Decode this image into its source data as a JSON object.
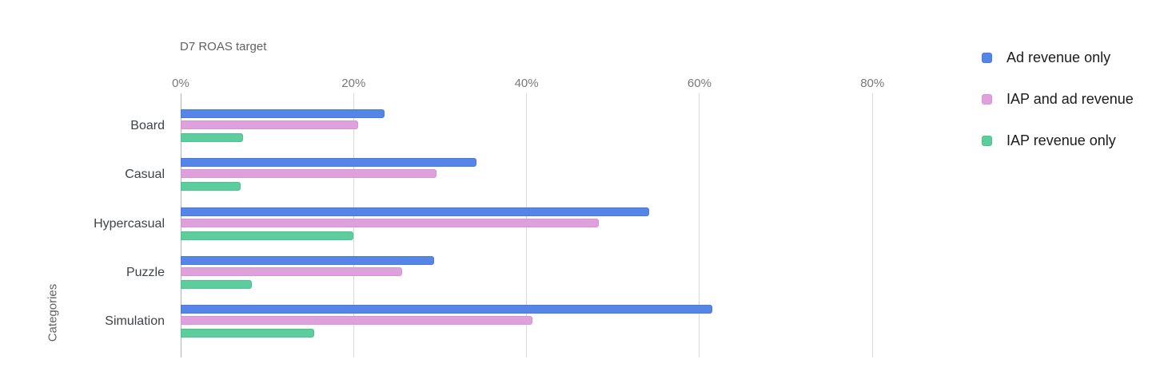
{
  "chart_data": {
    "type": "bar",
    "orientation": "horizontal",
    "title": "D7 ROAS target",
    "xlabel": "",
    "ylabel": "Categories",
    "value_unit": "%",
    "categories": [
      "Board",
      "Casual",
      "Hypercasual",
      "Puzzle",
      "Simulation"
    ],
    "series": [
      {
        "name": "Ad revenue only",
        "color": "#5585e7",
        "border_color": "#4b7ade",
        "values": [
          23.6,
          34.2,
          54.2,
          29.3,
          61.5
        ]
      },
      {
        "name": "IAP and ad revenue",
        "color": "#dfa1db",
        "border_color": "#d695d2",
        "values": [
          20.5,
          29.6,
          48.4,
          25.6,
          40.7
        ]
      },
      {
        "name": "IAP revenue only",
        "color": "#5ecd9e",
        "border_color": "#4cc191",
        "values": [
          7.2,
          6.9,
          20.0,
          8.2,
          15.4
        ]
      }
    ],
    "x_ticks": [
      "0%",
      "20%",
      "40%",
      "60%",
      "80%"
    ],
    "x_tick_values": [
      0,
      20,
      40,
      60,
      80
    ],
    "xlim": [
      0,
      85.5
    ],
    "grid": true,
    "legend_position": "right",
    "background_color": "#ffffff",
    "gridline_color": "#d9d9d9",
    "baseline_color": "#b3b3b3"
  }
}
